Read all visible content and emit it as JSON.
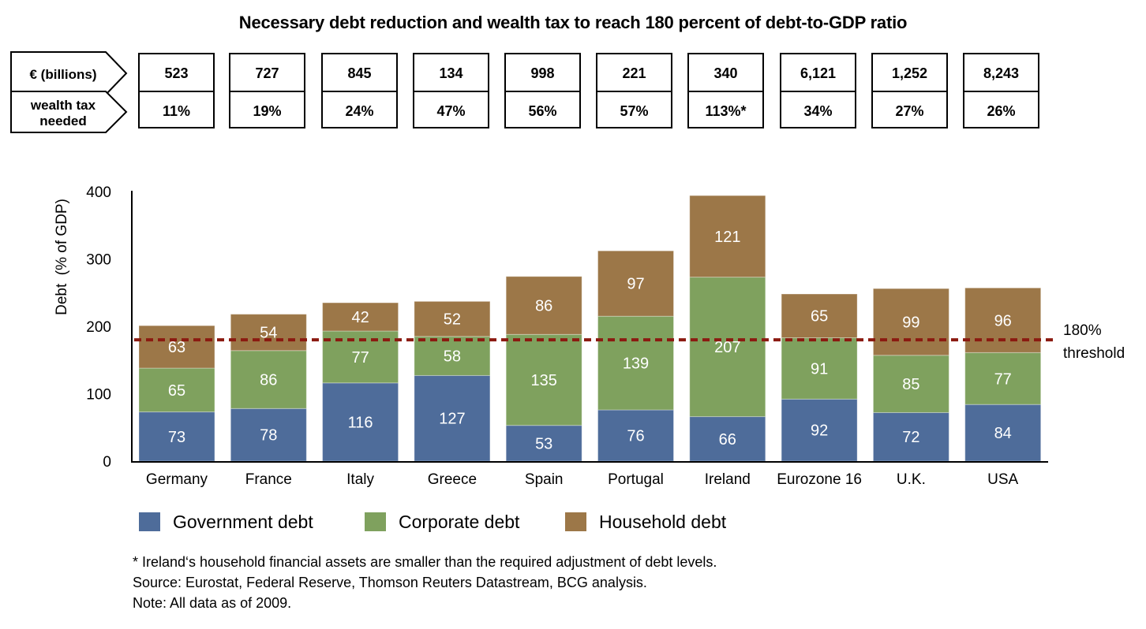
{
  "title": "Necessary debt reduction and wealth tax to reach 180 percent of debt-to-GDP ratio",
  "table": {
    "row_labels": [
      "€ (billions)",
      "wealth tax\nneeded"
    ],
    "row_label_lines": {
      "billions": "€ (billions)",
      "wealth_line1": "wealth tax",
      "wealth_line2": "needed"
    },
    "billions": [
      "523",
      "727",
      "845",
      "134",
      "998",
      "221",
      "340",
      "6,121",
      "1,252",
      "8,243"
    ],
    "wealth_tax": [
      "11%",
      "19%",
      "24%",
      "47%",
      "56%",
      "57%",
      "113%*",
      "34%",
      "27%",
      "26%"
    ]
  },
  "chart_data": {
    "type": "bar",
    "stacked": true,
    "title": "Necessary debt reduction and wealth tax to reach 180 percent of debt-to-GDP ratio",
    "xlabel": "",
    "ylabel": "Debt  (% of GDP)",
    "ylim": [
      0,
      400
    ],
    "yticks": [
      0,
      100,
      200,
      300,
      400
    ],
    "grid": false,
    "categories": [
      "Germany",
      "France",
      "Italy",
      "Greece",
      "Spain",
      "Portugal",
      "Ireland",
      "Eurozone 16",
      "U.K.",
      "USA"
    ],
    "series": [
      {
        "name": "Government debt",
        "color": "#4e6c9a",
        "values": [
          73,
          78,
          116,
          127,
          53,
          76,
          66,
          92,
          72,
          84
        ]
      },
      {
        "name": "Corporate debt",
        "color": "#7fa15e",
        "values": [
          65,
          86,
          77,
          58,
          135,
          139,
          207,
          91,
          85,
          77
        ]
      },
      {
        "name": "Household debt",
        "color": "#9c7748",
        "values": [
          63,
          54,
          42,
          52,
          86,
          97,
          121,
          65,
          99,
          96
        ]
      }
    ],
    "threshold": {
      "value": 180,
      "label_line1": "180%",
      "label_line2": "threshold",
      "color": "#8b1a10"
    },
    "legend_position": "bottom-left"
  },
  "footnotes": [
    "* Ireland‘s household financial assets are smaller than the required adjustment of debt levels.",
    "Source: Eurostat, Federal Reserve, Thomson Reuters Datastream, BCG analysis.",
    "Note: All data as of 2009."
  ]
}
